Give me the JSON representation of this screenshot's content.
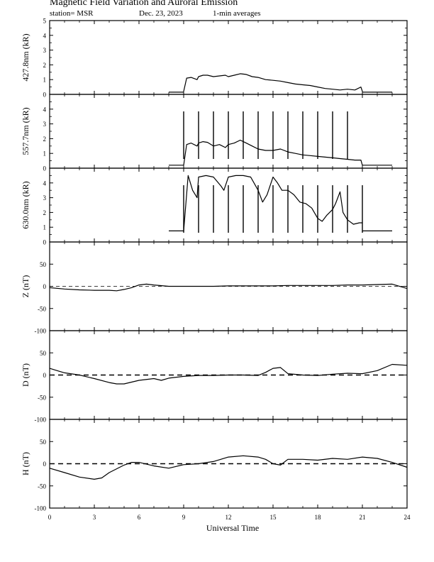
{
  "header": {
    "title": "Magnetic Field Variation and Auroral Emission",
    "station": "station= MSR",
    "date": "Dec. 23, 2023",
    "averaging": "1-min averages"
  },
  "chart_data": {
    "type": "line",
    "xlabel": "Universal Time",
    "xlim": [
      0,
      24
    ],
    "xticks": [
      0,
      3,
      6,
      9,
      12,
      15,
      18,
      21,
      24
    ],
    "panels": [
      {
        "id": "427.8nm",
        "ylabel": "427.8nm (kR)",
        "ylim": [
          0,
          5
        ],
        "yticks": [
          0,
          1,
          2,
          3,
          4,
          5
        ],
        "zero_line": false,
        "series": [
          {
            "x": [
              8.0,
              9.0
            ],
            "y": [
              0.15,
              0.15
            ]
          },
          {
            "x": [
              9.0,
              9.2,
              9.5,
              9.9,
              10.0,
              10.3,
              10.6,
              11.0,
              11.4,
              11.8,
              12.0,
              12.4,
              12.8,
              13.2,
              13.6,
              14.0,
              14.5,
              15.0,
              15.5,
              16.0,
              16.5,
              17.0,
              17.5,
              18.0,
              18.5,
              19.0,
              19.5,
              20.0,
              20.5,
              20.9,
              21.0
            ],
            "y": [
              0.2,
              1.1,
              1.15,
              1.0,
              1.2,
              1.3,
              1.3,
              1.2,
              1.25,
              1.3,
              1.2,
              1.3,
              1.4,
              1.35,
              1.2,
              1.15,
              1.0,
              0.95,
              0.9,
              0.8,
              0.7,
              0.65,
              0.6,
              0.5,
              0.4,
              0.35,
              0.3,
              0.35,
              0.3,
              0.5,
              0.2
            ]
          },
          {
            "x": [
              21.0,
              22.0,
              23.0
            ],
            "y": [
              0.15,
              0.15,
              0.15
            ]
          }
        ],
        "spikes": []
      },
      {
        "id": "557.7nm",
        "ylabel": "557.7nm (kR)",
        "ylim": [
          0,
          5
        ],
        "yticks": [
          0,
          1,
          2,
          3,
          4
        ],
        "zero_line": false,
        "series": [
          {
            "x": [
              8.0,
              9.0
            ],
            "y": [
              0.2,
              0.2
            ]
          },
          {
            "x": [
              9.0,
              9.2,
              9.5,
              9.9,
              10.0,
              10.3,
              10.6,
              11.0,
              11.4,
              11.8,
              12.0,
              12.4,
              12.8,
              13.2,
              13.6,
              14.0,
              14.5,
              15.0,
              15.5,
              16.0,
              16.5,
              17.0,
              17.5,
              18.0,
              18.5,
              19.0,
              19.5,
              20.0,
              20.5,
              20.9,
              21.0
            ],
            "y": [
              0.2,
              1.6,
              1.7,
              1.5,
              1.7,
              1.8,
              1.75,
              1.5,
              1.6,
              1.4,
              1.6,
              1.7,
              1.9,
              1.7,
              1.5,
              1.3,
              1.2,
              1.2,
              1.3,
              1.1,
              1.0,
              0.9,
              0.85,
              0.8,
              0.75,
              0.7,
              0.65,
              0.6,
              0.55,
              0.55,
              0.2
            ]
          },
          {
            "x": [
              21.0,
              22.0,
              23.0
            ],
            "y": [
              0.2,
              0.2,
              0.2
            ]
          }
        ],
        "spikes": [
          9,
          10,
          11,
          12,
          13,
          14,
          15,
          16,
          17,
          18,
          19,
          20
        ]
      },
      {
        "id": "630.0nm",
        "ylabel": "630.0nm (kR)",
        "ylim": [
          0,
          5
        ],
        "yticks": [
          0,
          1,
          2,
          3,
          4
        ],
        "zero_line": false,
        "series": [
          {
            "x": [
              8.0,
              9.0
            ],
            "y": [
              0.75,
              0.75
            ]
          },
          {
            "x": [
              9.0,
              9.3,
              9.6,
              9.9,
              10.0,
              10.5,
              11.0,
              11.5,
              11.7,
              12.0,
              12.5,
              13.0,
              13.5,
              14.0,
              14.3,
              14.6,
              15.0,
              15.3,
              15.6,
              16.0,
              16.4,
              16.8,
              17.2,
              17.6,
              18.0,
              18.3,
              18.6,
              19.0,
              19.2,
              19.5,
              19.7,
              20.0,
              20.4,
              20.8,
              21.0
            ],
            "y": [
              0.75,
              4.5,
              3.5,
              3.0,
              4.4,
              4.5,
              4.4,
              3.8,
              3.5,
              4.4,
              4.5,
              4.5,
              4.4,
              3.5,
              2.7,
              3.2,
              4.4,
              4.0,
              3.5,
              3.5,
              3.2,
              2.7,
              2.6,
              2.3,
              1.6,
              1.4,
              1.8,
              2.2,
              2.6,
              3.4,
              2.0,
              1.5,
              1.2,
              1.3,
              1.3
            ]
          },
          {
            "x": [
              21.0,
              22.0,
              23.0
            ],
            "y": [
              0.75,
              0.75,
              0.75
            ]
          }
        ],
        "spikes": [
          9,
          10,
          11,
          12,
          13,
          14,
          15,
          16,
          17,
          18,
          19,
          20,
          21
        ]
      },
      {
        "id": "Z",
        "ylabel": "Z (nT)",
        "ylim": [
          -100,
          100
        ],
        "yticks": [
          -100,
          -50,
          0,
          50
        ],
        "zero_line": true,
        "zero_line_style": "thin-dashed",
        "series": [
          {
            "x": [
              0,
              1,
              2,
              3,
              4,
              4.5,
              5,
              5.5,
              6,
              6.5,
              7,
              8,
              9,
              10,
              11,
              12,
              13,
              14,
              15,
              16,
              17,
              18,
              19,
              20,
              21,
              22,
              23,
              24
            ],
            "y": [
              -3,
              -6,
              -8,
              -9,
              -9,
              -10,
              -7,
              -3,
              3,
              5,
              3,
              0,
              0,
              0,
              0,
              1,
              1,
              1,
              1,
              2,
              2,
              2,
              2,
              3,
              3,
              4,
              5,
              -5
            ]
          }
        ],
        "spikes": []
      },
      {
        "id": "D",
        "ylabel": "D (nT)",
        "ylim": [
          -100,
          100
        ],
        "yticks": [
          -100,
          -50,
          0,
          50
        ],
        "zero_line": true,
        "zero_line_style": "thick-dashed",
        "series": [
          {
            "x": [
              0,
              0.5,
              1,
              2,
              3,
              4,
              4.5,
              5,
              6,
              7,
              7.5,
              8,
              9,
              10,
              11,
              12,
              13,
              14,
              14.5,
              15,
              15.5,
              16,
              17,
              18,
              19,
              20,
              21,
              22,
              23,
              24
            ],
            "y": [
              15,
              10,
              5,
              0,
              -8,
              -17,
              -20,
              -20,
              -12,
              -8,
              -12,
              -7,
              -3,
              -1,
              -1,
              0,
              0,
              -1,
              6,
              15,
              17,
              3,
              0,
              -1,
              2,
              4,
              3,
              10,
              24,
              22
            ]
          }
        ],
        "spikes": []
      },
      {
        "id": "H",
        "ylabel": "H (nT)",
        "ylim": [
          -100,
          100
        ],
        "yticks": [
          -100,
          -50,
          0,
          50
        ],
        "zero_line": true,
        "zero_line_style": "thick-dashed",
        "series": [
          {
            "x": [
              0,
              1,
              2,
              3,
              3.5,
              4,
              5,
              5.5,
              6,
              7,
              8,
              9,
              10,
              11,
              12,
              13,
              14,
              14.5,
              15,
              15.5,
              16,
              17,
              18,
              19,
              20,
              21,
              22,
              23,
              24
            ],
            "y": [
              -10,
              -20,
              -30,
              -35,
              -32,
              -20,
              -3,
              3,
              3,
              -5,
              -10,
              -2,
              0,
              5,
              15,
              18,
              15,
              10,
              0,
              -3,
              10,
              10,
              8,
              12,
              10,
              15,
              12,
              3,
              -8
            ]
          }
        ],
        "spikes": []
      }
    ]
  }
}
